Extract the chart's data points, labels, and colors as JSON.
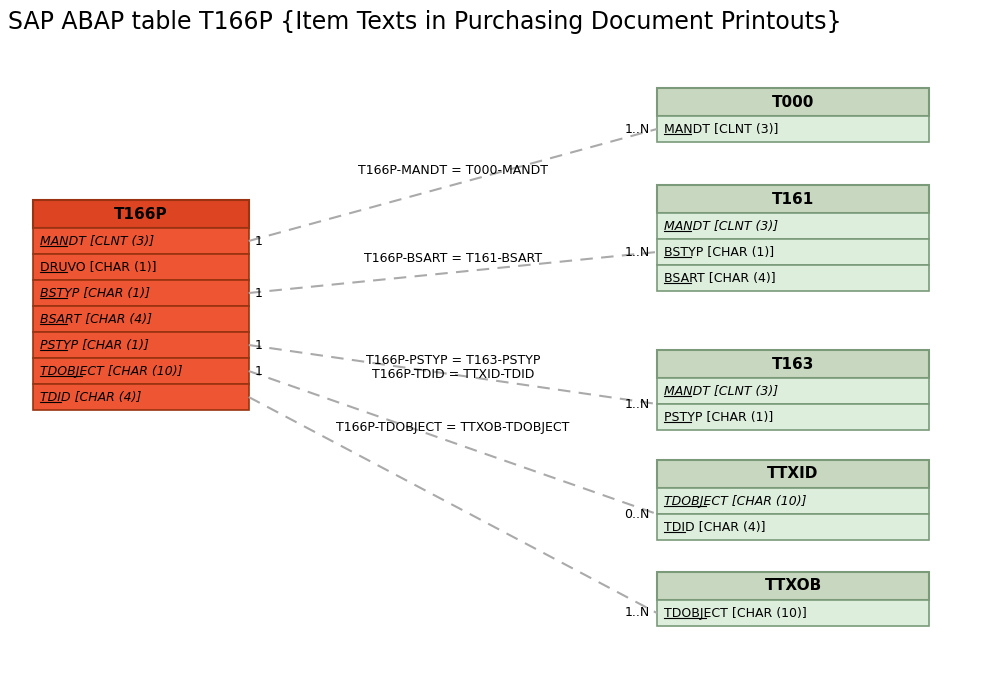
{
  "title": "SAP ABAP table T166P {Item Texts in Purchasing Document Printouts}",
  "title_fontsize": 17,
  "bg_color": "#ffffff",
  "main_table": {
    "name": "T166P",
    "header_color": "#dd4422",
    "row_color": "#ee5533",
    "border_color": "#993311",
    "fields": [
      {
        "text": "MANDT [CLNT (3)]",
        "italic": true,
        "underline": true
      },
      {
        "text": "DRUVO [CHAR (1)]",
        "italic": false,
        "underline": true
      },
      {
        "text": "BSTYP [CHAR (1)]",
        "italic": true,
        "underline": true
      },
      {
        "text": "BSART [CHAR (4)]",
        "italic": true,
        "underline": true
      },
      {
        "text": "PSTYP [CHAR (1)]",
        "italic": true,
        "underline": true
      },
      {
        "text": "TDOBJECT [CHAR (10)]",
        "italic": true,
        "underline": true
      },
      {
        "text": "TDID [CHAR (4)]",
        "italic": true,
        "underline": true
      }
    ]
  },
  "related_tables": [
    {
      "name": "T000",
      "fields": [
        {
          "text": "MANDT [CLNT (3)]",
          "italic": false,
          "underline": true
        }
      ],
      "header_color": "#c8d8c0",
      "row_color": "#ddeedd",
      "border_color": "#7a9a7a"
    },
    {
      "name": "T161",
      "fields": [
        {
          "text": "MANDT [CLNT (3)]",
          "italic": true,
          "underline": true
        },
        {
          "text": "BSTYP [CHAR (1)]",
          "italic": false,
          "underline": true
        },
        {
          "text": "BSART [CHAR (4)]",
          "italic": false,
          "underline": true
        }
      ],
      "header_color": "#c8d8c0",
      "row_color": "#ddeedd",
      "border_color": "#7a9a7a"
    },
    {
      "name": "T163",
      "fields": [
        {
          "text": "MANDT [CLNT (3)]",
          "italic": true,
          "underline": true
        },
        {
          "text": "PSTYP [CHAR (1)]",
          "italic": false,
          "underline": true
        }
      ],
      "header_color": "#c8d8c0",
      "row_color": "#ddeedd",
      "border_color": "#7a9a7a"
    },
    {
      "name": "TTXID",
      "fields": [
        {
          "text": "TDOBJECT [CHAR (10)]",
          "italic": true,
          "underline": true
        },
        {
          "text": "TDID [CHAR (4)]",
          "italic": false,
          "underline": true
        }
      ],
      "header_color": "#c8d8c0",
      "row_color": "#ddeedd",
      "border_color": "#7a9a7a"
    },
    {
      "name": "TTXOB",
      "fields": [
        {
          "text": "TDOBJECT [CHAR (10)]",
          "italic": false,
          "underline": true
        }
      ],
      "header_color": "#c8d8c0",
      "row_color": "#ddeedd",
      "border_color": "#7a9a7a"
    }
  ],
  "connections": [
    {
      "from_field": 0,
      "to_table": "T000",
      "label": "T166P-MANDT = T000-MANDT",
      "cardinality": "1..N",
      "show_one": true
    },
    {
      "from_field": 2,
      "to_table": "T161",
      "label": "T166P-BSART = T161-BSART",
      "cardinality": "1..N",
      "show_one": true
    },
    {
      "from_field": 4,
      "to_table": "T163",
      "label": "T166P-PSTYP = T163-PSTYP",
      "cardinality": "1..N",
      "show_one": true,
      "extra_label": "T166P-TDID = TTXID-TDID"
    },
    {
      "from_field": 5,
      "to_table": "TTXID",
      "label": "T166P-TDOBJECT = TTXOB-TDOBJECT",
      "cardinality": "0..N",
      "show_one": true
    },
    {
      "from_field": 6,
      "to_table": "TTXOB",
      "label": null,
      "cardinality": "1..N",
      "show_one": false
    }
  ],
  "dash_color": "#aaaaaa",
  "text_color": "#000000",
  "field_fontsize": 9,
  "header_fontsize": 11
}
